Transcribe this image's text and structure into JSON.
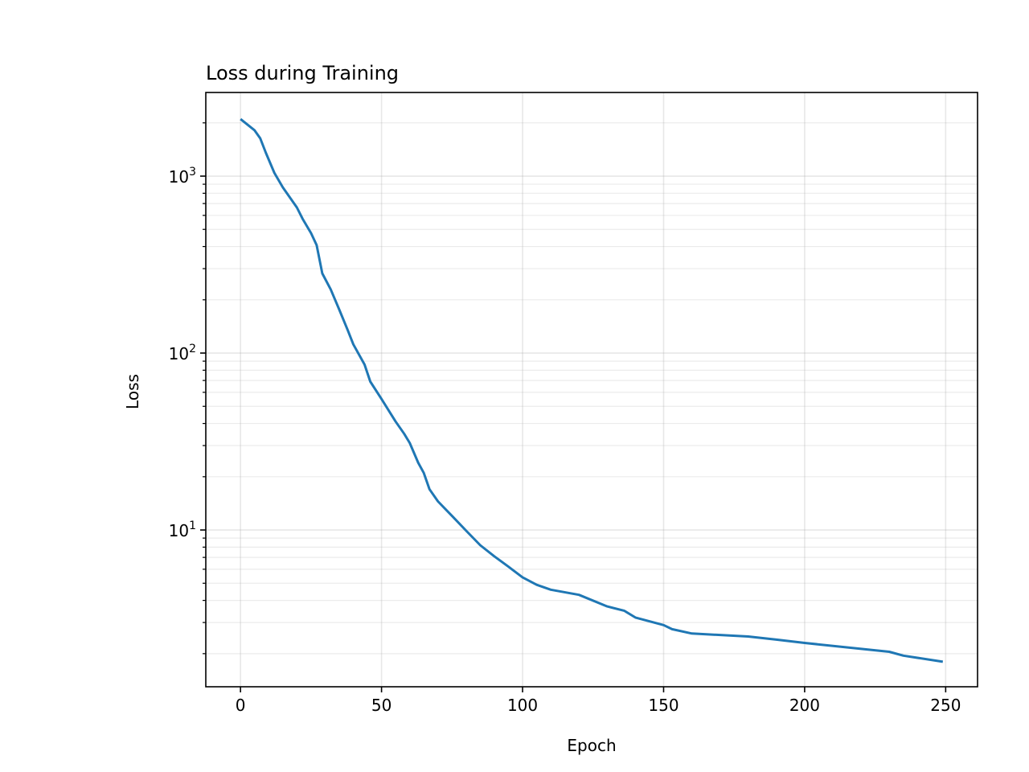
{
  "chart_data": {
    "type": "line",
    "title": "Loss during Training",
    "xlabel": "Epoch",
    "ylabel": "Loss",
    "yscale": "log",
    "xlim": [
      -12.3,
      261.3
    ],
    "ylim": [
      1.3,
      2970
    ],
    "grid": true,
    "x_ticks": [
      0,
      50,
      100,
      150,
      200,
      250
    ],
    "x_tick_labels": [
      "0",
      "50",
      "100",
      "150",
      "200",
      "250"
    ],
    "y_ticks": [
      10,
      100,
      1000
    ],
    "y_tick_labels": [
      {
        "base": "10",
        "exp": "1"
      },
      {
        "base": "10",
        "exp": "2"
      },
      {
        "base": "10",
        "exp": "3"
      }
    ],
    "series": [
      {
        "name": "loss",
        "color": "#1f77b4",
        "x": [
          0,
          5,
          7,
          9,
          12,
          15,
          20,
          22,
          25,
          27,
          29,
          32,
          35,
          38,
          40,
          44,
          46,
          50,
          55,
          58,
          60,
          63,
          65,
          67,
          70,
          75,
          80,
          85,
          90,
          95,
          100,
          105,
          110,
          120,
          130,
          136,
          140,
          150,
          153,
          160,
          180,
          190,
          200,
          230,
          235,
          249
        ],
        "y": [
          2100,
          1815,
          1636,
          1355,
          1043,
          864,
          665,
          574,
          476,
          407,
          282,
          229,
          176,
          135,
          112,
          86,
          69,
          55,
          41,
          35,
          31,
          24,
          21,
          17,
          14.5,
          12,
          9.9,
          8.2,
          7.1,
          6.2,
          5.4,
          4.9,
          4.6,
          4.3,
          3.7,
          3.5,
          3.2,
          2.9,
          2.75,
          2.6,
          2.5,
          2.4,
          2.3,
          2.05,
          1.95,
          1.8
        ]
      }
    ]
  }
}
